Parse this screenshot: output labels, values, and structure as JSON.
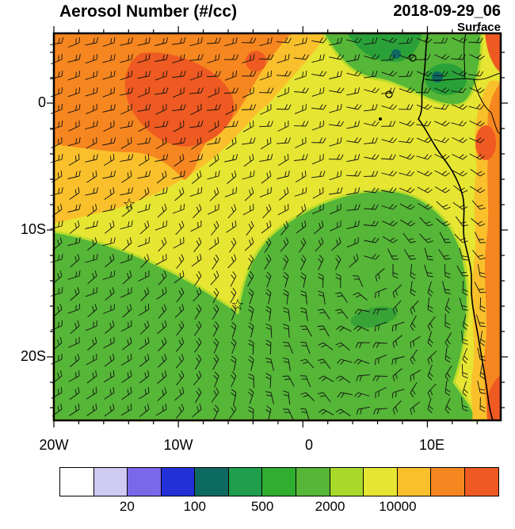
{
  "header": {
    "title": "Aerosol Number (#/cc)",
    "datetime": "2018-09-29_06",
    "level": "Surface"
  },
  "axes": {
    "y_labels": [
      "0",
      "10S",
      "20S"
    ],
    "x_labels": [
      "20W",
      "10W",
      "0",
      "10E"
    ]
  },
  "colorbar": {
    "labels": [
      "20",
      "100",
      "500",
      "2000",
      "10000"
    ],
    "colors": [
      "#ffffff",
      "#cfcaf1",
      "#7a68e8",
      "#2330d8",
      "#0d6a62",
      "#1f9e4e",
      "#2fae2f",
      "#55b637",
      "#a8d82a",
      "#e6e532",
      "#f9c02b",
      "#f6861f",
      "#ee5a21"
    ]
  },
  "chart_data": {
    "type": "heatmap",
    "title": "Aerosol Number (#/cc)",
    "datetime": "2018-09-29_06",
    "level": "Surface",
    "units": "#/cc",
    "projection": "lat-lon map of South Atlantic / Gulf of Guinea off west African coast",
    "lon_range": [
      -20,
      15.5
    ],
    "lat_range": [
      -25.5,
      5.5
    ],
    "lon_ticks": [
      "20W",
      "10W",
      "0",
      "10E"
    ],
    "lat_ticks": [
      "0",
      "10S",
      "20S"
    ],
    "contour_levels": [
      10,
      20,
      50,
      100,
      200,
      500,
      1000,
      2000,
      5000,
      10000,
      20000
    ],
    "colorbar_labeled_levels": [
      20,
      100,
      500,
      2000,
      10000
    ],
    "overlays": [
      "wind barbs",
      "coastline",
      "country borders",
      "star markers"
    ],
    "markers": [
      {
        "symbol": "star",
        "lon": -13.8,
        "lat": -8
      },
      {
        "symbol": "star",
        "lon": -5.2,
        "lat": -16
      }
    ],
    "regions": [
      {
        "area": "northwest quadrant (north of ~5S, west of 0)",
        "value_range": "10000-20000+",
        "color": "orange/red-orange"
      },
      {
        "area": "upper-middle band across map",
        "value_range": "5000-10000",
        "color": "yellow"
      },
      {
        "area": "southern half: two large lobes and subtropical gyre",
        "value_range": "1000-2000",
        "color": "green"
      },
      {
        "area": "top-right near Gabon/Cameroon coast",
        "value_range": "100-1000",
        "color": "dark green / teal"
      },
      {
        "area": "along African coast (Angola) and top-right corner",
        "value_range": "10000-20000+",
        "color": "orange/red"
      }
    ]
  }
}
